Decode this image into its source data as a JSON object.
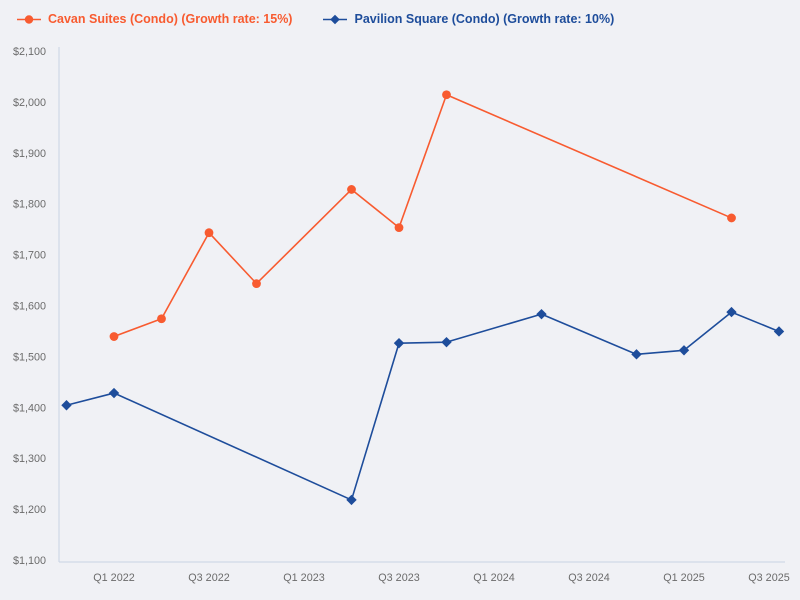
{
  "chart_data": {
    "type": "line",
    "title": "",
    "grid": false,
    "legend_position": "top-left",
    "x_quarters": [
      "Q4 2021",
      "Q1 2022",
      "Q2 2022",
      "Q3 2022",
      "Q4 2022",
      "Q1 2023",
      "Q2 2023",
      "Q3 2023",
      "Q4 2023",
      "Q1 2024",
      "Q2 2024",
      "Q3 2024",
      "Q4 2024",
      "Q1 2025",
      "Q2 2025",
      "Q3 2025"
    ],
    "x_axis": {
      "ticks": [
        "Q1 2022",
        "Q3 2022",
        "Q1 2023",
        "Q3 2023",
        "Q1 2024",
        "Q3 2024",
        "Q1 2025",
        "Q3 2025"
      ]
    },
    "y_axis": {
      "min": 1100,
      "max": 2100,
      "ticks": [
        {
          "label": "$2,100",
          "value": 2100
        },
        {
          "label": "$2,000",
          "value": 2000
        },
        {
          "label": "$1,900",
          "value": 1900
        },
        {
          "label": "$1,800",
          "value": 1800
        },
        {
          "label": "$1,700",
          "value": 1700
        },
        {
          "label": "$1,600",
          "value": 1600
        },
        {
          "label": "$1,500",
          "value": 1500
        },
        {
          "label": "$1,400",
          "value": 1400
        },
        {
          "label": "$1,300",
          "value": 1300
        },
        {
          "label": "$1,200",
          "value": 1200
        },
        {
          "label": "$1,100",
          "value": 1100
        }
      ]
    },
    "series": [
      {
        "name": "Cavan Suites (Condo) (Growth rate: 15%)",
        "color": "#f85b30",
        "marker": "circle",
        "points": [
          {
            "x": "Q1 2022",
            "y": 1540
          },
          {
            "x": "Q2 2022",
            "y": 1575
          },
          {
            "x": "Q3 2022",
            "y": 1744
          },
          {
            "x": "Q4 2022",
            "y": 1644
          },
          {
            "x": "Q2 2023",
            "y": 1829
          },
          {
            "x": "Q3 2023",
            "y": 1754
          },
          {
            "x": "Q4 2023",
            "y": 2015
          },
          {
            "x": "Q2 2025",
            "y": 1773
          }
        ]
      },
      {
        "name": "Pavilion Square (Condo) (Growth rate: 10%)",
        "color": "#1e4d9b",
        "marker": "diamond",
        "points": [
          {
            "x": "Q4 2021",
            "y": 1405
          },
          {
            "x": "Q1 2022",
            "y": 1429
          },
          {
            "x": "Q2 2023",
            "y": 1219
          },
          {
            "x": "Q3 2023",
            "y": 1527
          },
          {
            "x": "Q4 2023",
            "y": 1529
          },
          {
            "x": "Q2 2024",
            "y": 1584
          },
          {
            "x": "Q4 2024",
            "y": 1505
          },
          {
            "x": "Q1 2025",
            "y": 1513
          },
          {
            "x": "Q2 2025",
            "y": 1588
          },
          {
            "x": "Q3 2025",
            "y": 1550
          }
        ]
      }
    ],
    "style": {
      "background": "#f0f1f5",
      "axis_color": "#c9d4e4",
      "tick_color": "#6b6b6b"
    }
  }
}
